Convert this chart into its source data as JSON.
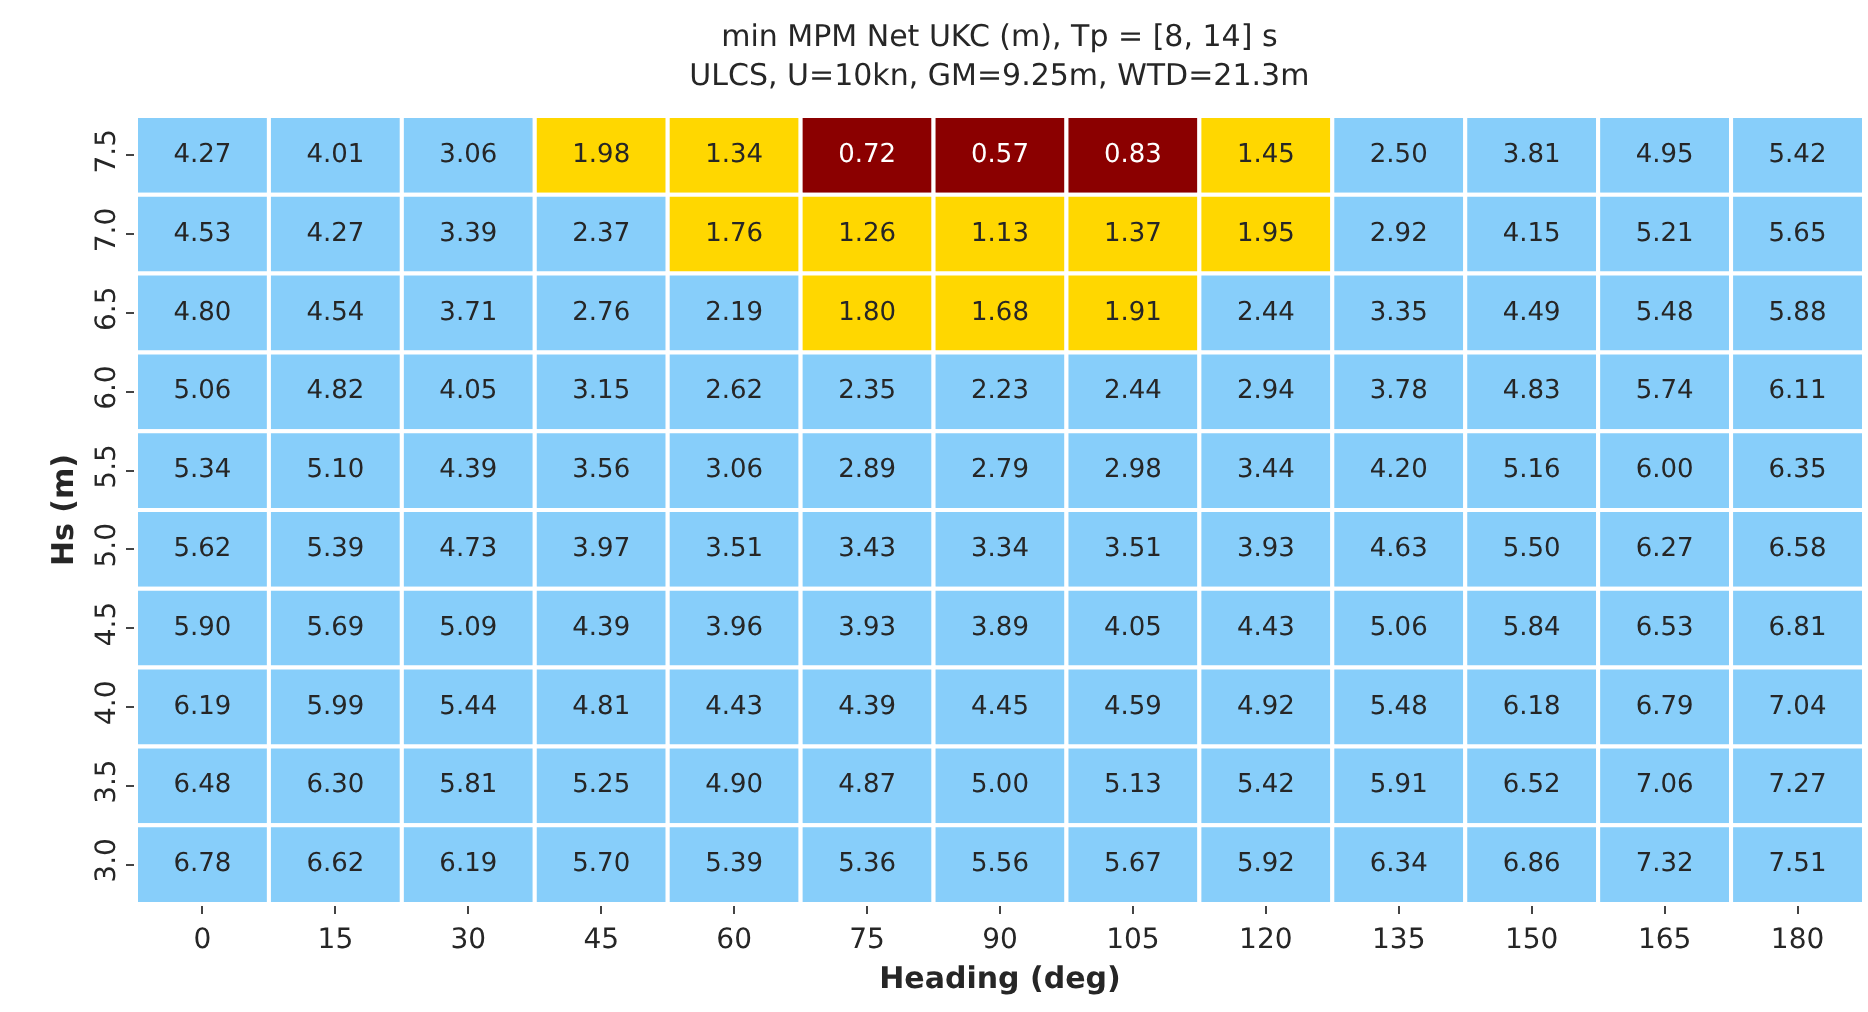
{
  "chart_data": {
    "type": "heatmap",
    "title": "min MPM Net UKC (m), Tp = [8, 14] s\nULCS, U=10kn, GM=9.25m, WTD=21.3m",
    "xlabel": "Heading (deg)",
    "ylabel": "Hs (m)",
    "data_labels": true,
    "categories": [
      "0",
      "15",
      "30",
      "45",
      "60",
      "75",
      "90",
      "105",
      "120",
      "135",
      "150",
      "165",
      "180"
    ],
    "y_categories": [
      "7.5",
      "7.0",
      "6.5",
      "6.0",
      "5.5",
      "5.0",
      "4.5",
      "4.0",
      "3.5",
      "3.0"
    ],
    "cells": [
      [
        4.27,
        4.01,
        3.06,
        1.98,
        1.34,
        0.72,
        0.57,
        0.83,
        1.45,
        2.5,
        3.81,
        4.95,
        5.42
      ],
      [
        4.53,
        4.27,
        3.39,
        2.37,
        1.76,
        1.26,
        1.13,
        1.37,
        1.95,
        2.92,
        4.15,
        5.21,
        5.65
      ],
      [
        4.8,
        4.54,
        3.71,
        2.76,
        2.19,
        1.8,
        1.68,
        1.91,
        2.44,
        3.35,
        4.49,
        5.48,
        5.88
      ],
      [
        5.06,
        4.82,
        4.05,
        3.15,
        2.62,
        2.35,
        2.23,
        2.44,
        2.94,
        3.78,
        4.83,
        5.74,
        6.11
      ],
      [
        5.34,
        5.1,
        4.39,
        3.56,
        3.06,
        2.89,
        2.79,
        2.98,
        3.44,
        4.2,
        5.16,
        6.0,
        6.35
      ],
      [
        5.62,
        5.39,
        4.73,
        3.97,
        3.51,
        3.43,
        3.34,
        3.51,
        3.93,
        4.63,
        5.5,
        6.27,
        6.58
      ],
      [
        5.9,
        5.69,
        5.09,
        4.39,
        3.96,
        3.93,
        3.89,
        4.05,
        4.43,
        5.06,
        5.84,
        6.53,
        6.81
      ],
      [
        6.19,
        5.99,
        5.44,
        4.81,
        4.43,
        4.39,
        4.45,
        4.59,
        4.92,
        5.48,
        6.18,
        6.79,
        7.04
      ],
      [
        6.48,
        6.3,
        5.81,
        5.25,
        4.9,
        4.87,
        5.0,
        5.13,
        5.42,
        5.91,
        6.52,
        7.06,
        7.27
      ],
      [
        6.78,
        6.62,
        6.19,
        5.7,
        5.39,
        5.36,
        5.56,
        5.67,
        5.92,
        6.34,
        6.86,
        7.32,
        7.51
      ]
    ],
    "cell_labels": [
      [
        "4.27",
        "4.01",
        "3.06",
        "1.98",
        "1.34",
        "0.72",
        "0.57",
        "0.83",
        "1.45",
        "2.50",
        "3.81",
        "4.95",
        "5.42"
      ],
      [
        "4.53",
        "4.27",
        "3.39",
        "2.37",
        "1.76",
        "1.26",
        "1.13",
        "1.37",
        "1.95",
        "2.92",
        "4.15",
        "5.21",
        "5.65"
      ],
      [
        "4.80",
        "4.54",
        "3.71",
        "2.76",
        "2.19",
        "1.80",
        "1.68",
        "1.91",
        "2.44",
        "3.35",
        "4.49",
        "5.48",
        "5.88"
      ],
      [
        "5.06",
        "4.82",
        "4.05",
        "3.15",
        "2.62",
        "2.35",
        "2.23",
        "2.44",
        "2.94",
        "3.78",
        "4.83",
        "5.74",
        "6.11"
      ],
      [
        "5.34",
        "5.10",
        "4.39",
        "3.56",
        "3.06",
        "2.89",
        "2.79",
        "2.98",
        "3.44",
        "4.20",
        "5.16",
        "6.00",
        "6.35"
      ],
      [
        "5.62",
        "5.39",
        "4.73",
        "3.97",
        "3.51",
        "3.43",
        "3.34",
        "3.51",
        "3.93",
        "4.63",
        "5.50",
        "6.27",
        "6.58"
      ],
      [
        "5.90",
        "5.69",
        "5.09",
        "4.39",
        "3.96",
        "3.93",
        "3.89",
        "4.05",
        "4.43",
        "5.06",
        "5.84",
        "6.53",
        "6.81"
      ],
      [
        "6.19",
        "5.99",
        "5.44",
        "4.81",
        "4.43",
        "4.39",
        "4.45",
        "4.59",
        "4.92",
        "5.48",
        "6.18",
        "6.79",
        "7.04"
      ],
      [
        "6.48",
        "6.30",
        "5.81",
        "5.25",
        "4.90",
        "4.87",
        "5.00",
        "5.13",
        "5.42",
        "5.91",
        "6.52",
        "7.06",
        "7.27"
      ],
      [
        "6.78",
        "6.62",
        "6.19",
        "5.70",
        "5.39",
        "5.36",
        "5.56",
        "5.67",
        "5.92",
        "6.34",
        "6.86",
        "7.32",
        "7.51"
      ]
    ],
    "colors": [
      [
        "#87cefa",
        "#87cefa",
        "#87cefa",
        "#ffd700",
        "#ffd700",
        "#8b0000",
        "#8b0000",
        "#8b0000",
        "#ffd700",
        "#87cefa",
        "#87cefa",
        "#87cefa",
        "#87cefa"
      ],
      [
        "#87cefa",
        "#87cefa",
        "#87cefa",
        "#87cefa",
        "#ffd700",
        "#ffd700",
        "#ffd700",
        "#ffd700",
        "#ffd700",
        "#87cefa",
        "#87cefa",
        "#87cefa",
        "#87cefa"
      ],
      [
        "#87cefa",
        "#87cefa",
        "#87cefa",
        "#87cefa",
        "#87cefa",
        "#ffd700",
        "#ffd700",
        "#ffd700",
        "#87cefa",
        "#87cefa",
        "#87cefa",
        "#87cefa",
        "#87cefa"
      ],
      [
        "#87cefa",
        "#87cefa",
        "#87cefa",
        "#87cefa",
        "#87cefa",
        "#87cefa",
        "#87cefa",
        "#87cefa",
        "#87cefa",
        "#87cefa",
        "#87cefa",
        "#87cefa",
        "#87cefa"
      ],
      [
        "#87cefa",
        "#87cefa",
        "#87cefa",
        "#87cefa",
        "#87cefa",
        "#87cefa",
        "#87cefa",
        "#87cefa",
        "#87cefa",
        "#87cefa",
        "#87cefa",
        "#87cefa",
        "#87cefa"
      ],
      [
        "#87cefa",
        "#87cefa",
        "#87cefa",
        "#87cefa",
        "#87cefa",
        "#87cefa",
        "#87cefa",
        "#87cefa",
        "#87cefa",
        "#87cefa",
        "#87cefa",
        "#87cefa",
        "#87cefa"
      ],
      [
        "#87cefa",
        "#87cefa",
        "#87cefa",
        "#87cefa",
        "#87cefa",
        "#87cefa",
        "#87cefa",
        "#87cefa",
        "#87cefa",
        "#87cefa",
        "#87cefa",
        "#87cefa",
        "#87cefa"
      ],
      [
        "#87cefa",
        "#87cefa",
        "#87cefa",
        "#87cefa",
        "#87cefa",
        "#87cefa",
        "#87cefa",
        "#87cefa",
        "#87cefa",
        "#87cefa",
        "#87cefa",
        "#87cefa",
        "#87cefa"
      ],
      [
        "#87cefa",
        "#87cefa",
        "#87cefa",
        "#87cefa",
        "#87cefa",
        "#87cefa",
        "#87cefa",
        "#87cefa",
        "#87cefa",
        "#87cefa",
        "#87cefa",
        "#87cefa",
        "#87cefa"
      ],
      [
        "#87cefa",
        "#87cefa",
        "#87cefa",
        "#87cefa",
        "#87cefa",
        "#87cefa",
        "#87cefa",
        "#87cefa",
        "#87cefa",
        "#87cefa",
        "#87cefa",
        "#87cefa",
        "#87cefa"
      ]
    ]
  }
}
